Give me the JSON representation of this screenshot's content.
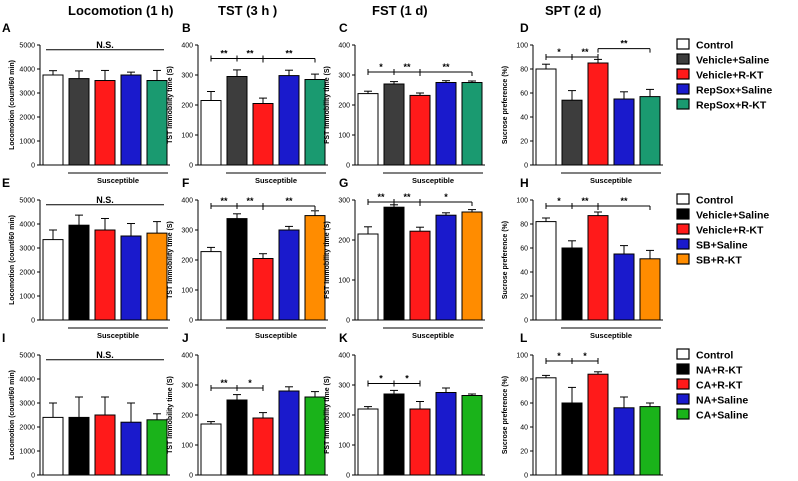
{
  "colors": {
    "Control": "#ffffff",
    "Vehicle+Saline": "#3d3d3d",
    "Vehicle+R-KT": "#ff1a1a",
    "RepSox+Saline": "#1a1acc",
    "RepSox+R-KT": "#1a9a70",
    "Vehicle+Saline (row2)": "#000000",
    "SB+Saline": "#1a1acc",
    "SB+R-KT": "#ff8c00",
    "NA+R-KT": "#000000",
    "CA+R-KT": "#ff1a1a",
    "NA+Saline": "#1a1acc",
    "CA+Saline": "#1ab31a"
  },
  "column_titles": [
    "Locomotion (1 h)",
    "TST (3 h )",
    "FST (1 d)",
    "SPT (2 d)"
  ],
  "group_label": "Susceptible",
  "legends": [
    [
      "Control",
      "Vehicle+Saline",
      "Vehicle+R-KT",
      "RepSox+Saline",
      "RepSox+R-KT"
    ],
    [
      "Control",
      "Vehicle+Saline",
      "Vehicle+R-KT",
      "SB+Saline",
      "SB+R-KT"
    ],
    [
      "Control",
      "NA+R-KT",
      "CA+R-KT",
      "NA+Saline",
      "CA+Saline"
    ]
  ],
  "chart_data": [
    {
      "panel": "A",
      "type": "bar",
      "ylabel": "Locomotion (count/60 min)",
      "ylim": [
        0,
        5000
      ],
      "yticks": [
        0,
        1000,
        2000,
        3000,
        4000,
        5000
      ],
      "values": [
        3750,
        3600,
        3520,
        3750,
        3520
      ],
      "errors": [
        180,
        320,
        420,
        120,
        420
      ],
      "annotations": [
        "N.S."
      ]
    },
    {
      "panel": "B",
      "type": "bar",
      "ylabel": "TST Immobility time (S)",
      "ylim": [
        0,
        400
      ],
      "yticks": [
        0,
        100,
        200,
        300,
        400
      ],
      "values": [
        215,
        295,
        205,
        298,
        285
      ],
      "errors": [
        30,
        22,
        18,
        18,
        18
      ],
      "annotations": [
        "**",
        "**",
        "**"
      ]
    },
    {
      "panel": "C",
      "type": "bar",
      "ylabel": "FST Immobility time (S)",
      "ylim": [
        0,
        400
      ],
      "yticks": [
        0,
        100,
        200,
        300,
        400
      ],
      "values": [
        238,
        270,
        232,
        275,
        275
      ],
      "errors": [
        8,
        8,
        8,
        6,
        5
      ],
      "annotations": [
        "*",
        "**",
        "**"
      ]
    },
    {
      "panel": "D",
      "type": "bar",
      "ylabel": "Sucrose preference (%)",
      "ylim": [
        0,
        100
      ],
      "yticks": [
        0,
        20,
        40,
        60,
        80,
        100
      ],
      "values": [
        80,
        54,
        85,
        55,
        57
      ],
      "errors": [
        4,
        8,
        3,
        6,
        6
      ],
      "annotations": [
        "*",
        "**",
        "**"
      ]
    },
    {
      "panel": "E",
      "type": "bar",
      "ylabel": "Locomotion (count/60 min)",
      "ylim": [
        0,
        5000
      ],
      "yticks": [
        0,
        1000,
        2000,
        3000,
        4000,
        5000
      ],
      "values": [
        3350,
        3950,
        3750,
        3500,
        3620
      ],
      "errors": [
        400,
        420,
        480,
        520,
        480
      ],
      "annotations": [
        "N.S."
      ]
    },
    {
      "panel": "F",
      "type": "bar",
      "ylabel": "TST Immobility time (S)",
      "ylim": [
        0,
        400
      ],
      "yticks": [
        0,
        100,
        200,
        300,
        400
      ],
      "values": [
        228,
        338,
        205,
        300,
        348
      ],
      "errors": [
        14,
        16,
        16,
        12,
        16
      ],
      "annotations": [
        "**",
        "**",
        "**"
      ]
    },
    {
      "panel": "G",
      "type": "bar",
      "ylabel": "FST Immobility time (S)",
      "ylim": [
        0,
        300
      ],
      "yticks": [
        0,
        100,
        200,
        300
      ],
      "values": [
        215,
        282,
        222,
        262,
        270
      ],
      "errors": [
        18,
        6,
        10,
        6,
        6
      ],
      "annotations": [
        "**",
        "**",
        "*"
      ]
    },
    {
      "panel": "H",
      "type": "bar",
      "ylabel": "Sucrose preference (%)",
      "ylim": [
        0,
        100
      ],
      "yticks": [
        0,
        20,
        40,
        60,
        80,
        100
      ],
      "values": [
        82,
        60,
        87,
        55,
        51
      ],
      "errors": [
        3,
        6,
        3,
        7,
        7
      ],
      "annotations": [
        "*",
        "**",
        "**"
      ]
    },
    {
      "panel": "I",
      "type": "bar",
      "ylabel": "Locomotion (count/60 min)",
      "ylim": [
        0,
        5000
      ],
      "yticks": [
        0,
        1000,
        2000,
        3000,
        4000,
        5000
      ],
      "values": [
        2400,
        2400,
        2500,
        2200,
        2300
      ],
      "errors": [
        600,
        850,
        750,
        800,
        250
      ],
      "annotations": [
        "N.S."
      ]
    },
    {
      "panel": "J",
      "type": "bar",
      "ylabel": "TST Immobility time (S)",
      "ylim": [
        0,
        400
      ],
      "yticks": [
        0,
        100,
        200,
        300,
        400
      ],
      "values": [
        170,
        250,
        190,
        280,
        260
      ],
      "errors": [
        8,
        18,
        18,
        14,
        18
      ],
      "annotations": [
        "**",
        "*"
      ]
    },
    {
      "panel": "K",
      "type": "bar",
      "ylabel": "FST Immobility time (S)",
      "ylim": [
        0,
        400
      ],
      "yticks": [
        0,
        100,
        200,
        300,
        400
      ],
      "values": [
        220,
        270,
        220,
        275,
        265
      ],
      "errors": [
        8,
        12,
        25,
        15,
        5
      ],
      "annotations": [
        "*",
        "*"
      ]
    },
    {
      "panel": "L",
      "type": "bar",
      "ylabel": "Sucrose preference (%)",
      "ylim": [
        0,
        100
      ],
      "yticks": [
        0,
        20,
        40,
        60,
        80,
        100
      ],
      "values": [
        81,
        60,
        84,
        56,
        57
      ],
      "errors": [
        2,
        13,
        2,
        9,
        3
      ],
      "annotations": [
        "*",
        "*"
      ]
    }
  ]
}
